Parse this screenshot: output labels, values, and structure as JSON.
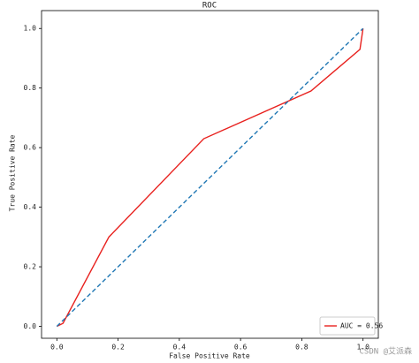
{
  "chart_data": {
    "type": "line",
    "title": "ROC",
    "x_label": "False Positive Rate",
    "y_label": "True Positive Rate",
    "series": [
      {
        "name": "AUC = 0.56",
        "color": "#e8211e",
        "dash": false,
        "x": [
          0,
          0.02,
          0.17,
          0.48,
          0.83,
          0.99,
          1
        ],
        "values": [
          0,
          0.01,
          0.3,
          0.63,
          0.79,
          0.93,
          1
        ]
      },
      {
        "color": "#1f77b4",
        "dash": true,
        "x": [
          0,
          1
        ],
        "values": [
          0,
          1
        ]
      }
    ],
    "xlim": [
      -0.05,
      1.05
    ],
    "ylim": [
      -0.04,
      1.06
    ],
    "xticks": [
      {
        "value": 0,
        "label": "0.0"
      },
      0.2,
      0.4,
      0.6,
      0.8,
      {
        "value": 1,
        "label": "1.0"
      }
    ],
    "yticks": [
      {
        "value": 0,
        "label": "0.0"
      },
      0.2,
      0.4,
      0.6,
      0.8,
      {
        "value": 1,
        "label": "1.0"
      }
    ],
    "grid": false,
    "legend": "lower right",
    "watermark": "CSDN @艾派森"
  }
}
